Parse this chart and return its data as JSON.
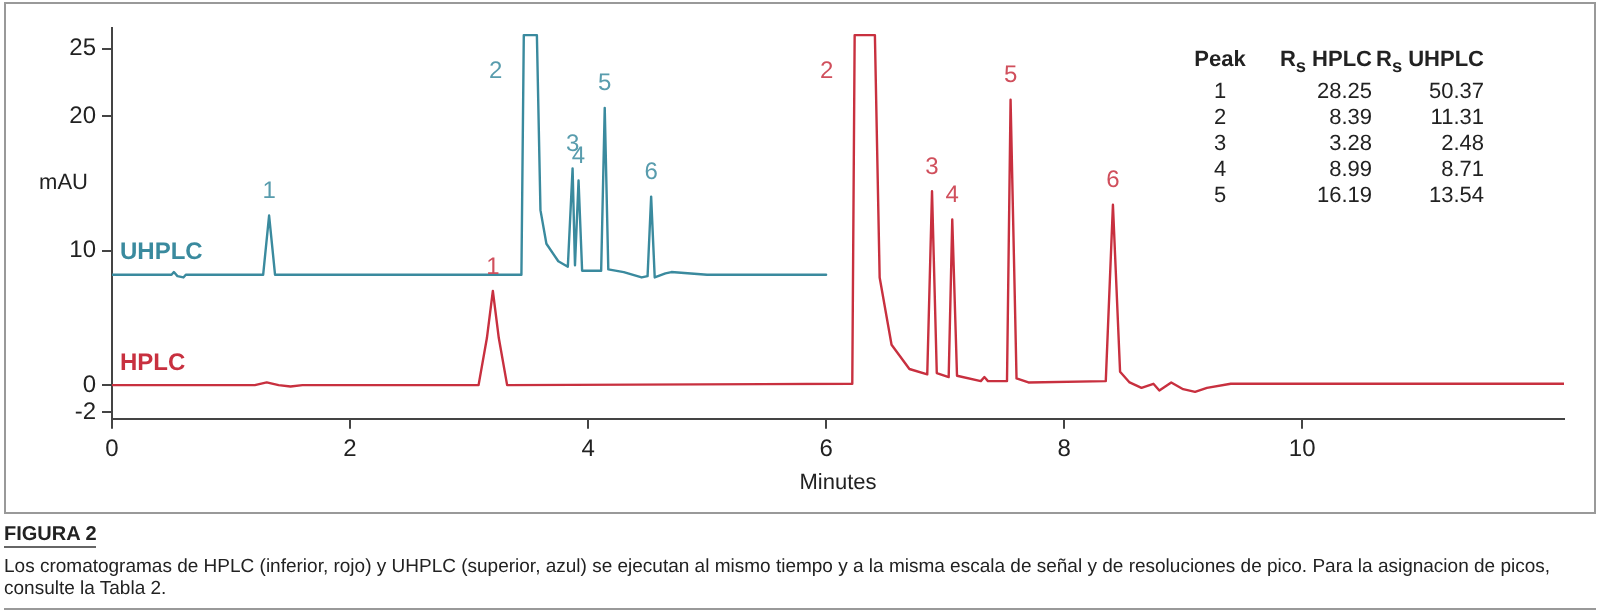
{
  "chart_data": {
    "type": "line",
    "xlabel": "Minutes",
    "ylabel": "mAU",
    "xlim": [
      0,
      12.2
    ],
    "xticks": [
      0,
      2,
      4,
      6,
      8,
      10
    ],
    "ylim": [
      -2.5,
      26.5
    ],
    "yticks": [
      -2,
      0,
      10,
      20,
      25
    ],
    "grid": false,
    "legend": false,
    "marker": "none",
    "line_style": "solid",
    "series": [
      {
        "name": "UHPLC",
        "color": "#3a8a9e",
        "x": [
          0,
          0.5,
          0.52,
          0.55,
          0.6,
          0.62,
          1.27,
          1.32,
          1.37,
          3.44,
          3.46,
          3.57,
          3.6,
          3.65,
          3.75,
          3.83,
          3.87,
          3.89,
          3.92,
          3.95,
          4.11,
          4.14,
          4.17,
          4.3,
          4.45,
          4.5,
          4.53,
          4.56,
          4.65,
          4.7,
          5.0,
          6.0
        ],
        "values": [
          8.2,
          8.2,
          8.4,
          8.1,
          8.0,
          8.2,
          8.2,
          12.6,
          8.2,
          8.2,
          26,
          26,
          13,
          10.5,
          9.2,
          8.8,
          16.1,
          8.9,
          15.2,
          8.5,
          8.5,
          20.6,
          8.6,
          8.4,
          8.0,
          8.1,
          14.0,
          8.0,
          8.3,
          8.4,
          8.2,
          8.2
        ]
      },
      {
        "name": "HPLC",
        "color": "#c8303f",
        "x": [
          0,
          1.2,
          1.3,
          1.4,
          1.5,
          1.6,
          3.08,
          3.15,
          3.2,
          3.25,
          3.32,
          6.22,
          6.24,
          6.41,
          6.45,
          6.55,
          6.7,
          6.85,
          6.89,
          6.93,
          7.03,
          7.06,
          7.1,
          7.3,
          7.33,
          7.36,
          7.52,
          7.55,
          7.6,
          7.7,
          8.35,
          8.41,
          8.47,
          8.55,
          8.65,
          8.75,
          8.8,
          8.9,
          9.0,
          9.1,
          9.2,
          9.4,
          12.2
        ],
        "values": [
          0,
          0,
          0.2,
          0,
          -0.1,
          0,
          0,
          3.5,
          7.0,
          3.5,
          0,
          0.1,
          26,
          26,
          8,
          3,
          1.2,
          0.8,
          14.4,
          0.9,
          0.6,
          12.3,
          0.7,
          0.3,
          0.6,
          0.3,
          0.3,
          21.2,
          0.5,
          0.2,
          0.3,
          13.4,
          1,
          0.2,
          -0.2,
          0.1,
          -0.4,
          0.2,
          -0.3,
          -0.5,
          -0.2,
          0.1,
          0.1
        ]
      }
    ],
    "annotations": [
      {
        "text": "1",
        "x": 1.32,
        "y": 12.6
      },
      {
        "text": "2",
        "x": 3.46,
        "y": 26
      },
      {
        "text": "3",
        "x": 3.87,
        "y": 16.1
      },
      {
        "text": "4",
        "x": 3.92,
        "y": 15.2
      },
      {
        "text": "5",
        "x": 4.14,
        "y": 20.6
      },
      {
        "text": "6",
        "x": 4.53,
        "y": 14.0
      },
      {
        "text": "1",
        "x": 3.2,
        "y": 7.0
      },
      {
        "text": "2",
        "x": 6.24,
        "y": 26
      },
      {
        "text": "3",
        "x": 6.89,
        "y": 14.4
      },
      {
        "text": "4",
        "x": 7.06,
        "y": 12.3
      },
      {
        "text": "5",
        "x": 7.55,
        "y": 21.2
      },
      {
        "text": "6",
        "x": 8.41,
        "y": 13.4
      },
      "Peak",
      "R$_{s}$ HPLC",
      "R$_{s}$ UHPLC",
      "1",
      "28.25",
      "50.37",
      "2",
      "8.39",
      "11.31",
      "3",
      "3.28",
      "2.48",
      "4",
      "8.99",
      "8.71",
      "5",
      "16.19",
      "13.54",
      "FIGURA 2",
      "Los cromatogramas de HPLC (inferior, rojo) y UHPLC (superior, azul) se ejecutan al mismo tiempo y a la misma escala de señal y de resoluciones de pico. Para la asignacion de picos, consulte la Tabla 2."
    ]
  }
}
